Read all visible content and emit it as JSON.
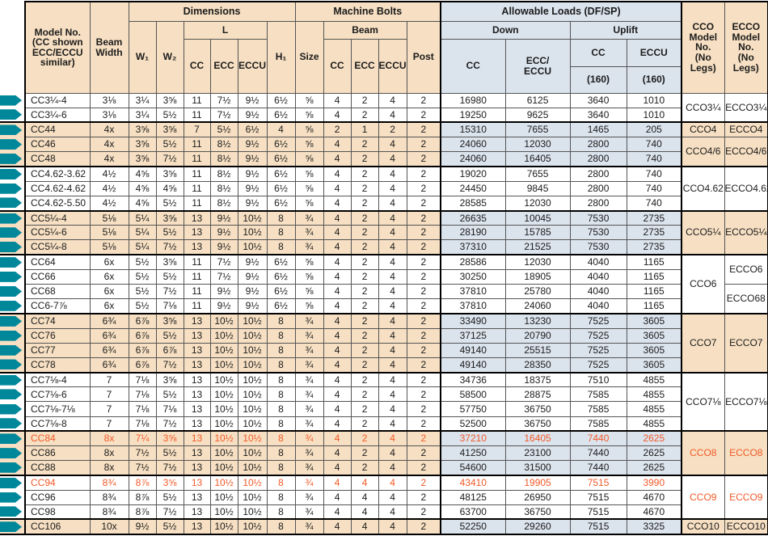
{
  "colors": {
    "tan": "#f6dfc2",
    "blue": "#dbe3ed",
    "teal": "#00879a",
    "orange": "#f15a29"
  },
  "header": {
    "model": "Model No.\n(CC shown\nECC/ECCU\nsimilar)",
    "beam_width": "Beam\nWidth",
    "dimensions": "Dimensions",
    "machine_bolts": "Machine Bolts",
    "allowable_loads": "Allowable Loads (DF/SP)",
    "w1": "W₁",
    "w2": "W₂",
    "l": "L",
    "h1": "H₁",
    "size": "Size",
    "beam": "Beam",
    "post": "Post",
    "down": "Down",
    "uplift": "Uplift",
    "cc": "CC",
    "ecc": "ECC",
    "eccu": "ECCU",
    "ecc_eccu": "ECC/\nECCU",
    "rating160": "(160)",
    "cco": "CCO\nModel No.\n(No Legs)",
    "ecco": "ECCO\nModel No.\n(No Legs)"
  },
  "column_keys": [
    "model",
    "beam_width",
    "w1",
    "w2",
    "l_cc",
    "l_ecc",
    "l_eccu",
    "h1",
    "size",
    "bolt_cc",
    "bolt_ecc",
    "bolt_eccu",
    "post",
    "down_cc",
    "down_ecc_eccu",
    "uplift_cc_160",
    "uplift_eccu_160"
  ],
  "groups": [
    {
      "shade": "white",
      "cco": [
        {
          "label": "CCO3¼",
          "span": 2
        }
      ],
      "ecco": [
        {
          "label": "ECCO3¼",
          "span": 2
        }
      ],
      "rows": [
        {
          "cells": [
            "CC3¼-4",
            "3⅛",
            "3¼",
            "3⅝",
            "11",
            "7½",
            "9½",
            "6½",
            "⅝",
            "4",
            "2",
            "4",
            "2",
            "16980",
            "6125",
            "3640",
            "1010"
          ]
        },
        {
          "cells": [
            "CC3¼-6",
            "3⅛",
            "3¼",
            "5½",
            "11",
            "7½",
            "9½",
            "6½",
            "⅝",
            "4",
            "2",
            "4",
            "2",
            "19250",
            "9625",
            "3640",
            "1010"
          ]
        }
      ]
    },
    {
      "shade": "tan",
      "cco": [
        {
          "label": "CCO4",
          "span": 1
        },
        {
          "label": "CCO4/6",
          "span": 2
        }
      ],
      "ecco": [
        {
          "label": "ECCO4",
          "span": 1
        },
        {
          "label": "ECCO4/6",
          "span": 2
        }
      ],
      "rows": [
        {
          "cells": [
            "CC44",
            "4x",
            "3⅝",
            "3⅝",
            "7",
            "5½",
            "6½",
            "4",
            "⅝",
            "2",
            "1",
            "2",
            "2",
            "15310",
            "7655",
            "1465",
            "205"
          ]
        },
        {
          "cells": [
            "CC46",
            "4x",
            "3⅝",
            "5½",
            "11",
            "8½",
            "9½",
            "6½",
            "⅝",
            "4",
            "2",
            "4",
            "2",
            "24060",
            "12030",
            "2800",
            "740"
          ]
        },
        {
          "cells": [
            "CC48",
            "4x",
            "3⅝",
            "7½",
            "11",
            "8½",
            "9½",
            "6½",
            "⅝",
            "4",
            "2",
            "4",
            "2",
            "24060",
            "16405",
            "2800",
            "740"
          ]
        }
      ]
    },
    {
      "shade": "white",
      "cco": [
        {
          "label": "CCO4.62",
          "span": 3
        }
      ],
      "ecco": [
        {
          "label": "ECCO4.62",
          "span": 3
        }
      ],
      "rows": [
        {
          "cells": [
            "CC4.62-3.62",
            "4½",
            "4⅝",
            "3⅝",
            "11",
            "8½",
            "9½",
            "6½",
            "⅝",
            "4",
            "2",
            "4",
            "2",
            "19020",
            "7655",
            "2800",
            "740"
          ]
        },
        {
          "cells": [
            "CC4.62-4.62",
            "4½",
            "4⅝",
            "4⅝",
            "11",
            "8½",
            "9½",
            "6½",
            "⅝",
            "4",
            "2",
            "4",
            "2",
            "24450",
            "9845",
            "2800",
            "740"
          ]
        },
        {
          "cells": [
            "CC4.62-5.50",
            "4½",
            "4⅝",
            "5½",
            "11",
            "8½",
            "9½",
            "6½",
            "⅝",
            "4",
            "2",
            "4",
            "2",
            "28585",
            "12030",
            "2800",
            "740"
          ]
        }
      ]
    },
    {
      "shade": "tan",
      "cco": [
        {
          "label": "CCO5¼",
          "span": 3
        }
      ],
      "ecco": [
        {
          "label": "ECCO5¼",
          "span": 3
        }
      ],
      "rows": [
        {
          "cells": [
            "CC5¼-4",
            "5⅛",
            "5¼",
            "3⅝",
            "13",
            "9½",
            "10½",
            "8",
            "¾",
            "4",
            "2",
            "4",
            "2",
            "26635",
            "10045",
            "7530",
            "2735"
          ]
        },
        {
          "cells": [
            "CC5¼-6",
            "5⅛",
            "5¼",
            "5½",
            "13",
            "9½",
            "10½",
            "8",
            "¾",
            "4",
            "2",
            "4",
            "2",
            "28190",
            "15785",
            "7530",
            "2735"
          ]
        },
        {
          "cells": [
            "CC5¼-8",
            "5⅛",
            "5¼",
            "7½",
            "13",
            "9½",
            "10½",
            "8",
            "¾",
            "4",
            "2",
            "4",
            "2",
            "37310",
            "21525",
            "7530",
            "2735"
          ]
        }
      ]
    },
    {
      "shade": "white",
      "cco": [
        {
          "label": "CCO6",
          "span": 4
        }
      ],
      "ecco": [
        {
          "label": "ECCO6",
          "span": 2
        },
        {
          "label": "ECCO68",
          "span": 2
        }
      ],
      "rows": [
        {
          "cells": [
            "CC64",
            "6x",
            "5½",
            "3⅝",
            "11",
            "7½",
            "9½",
            "6½",
            "⅝",
            "4",
            "2",
            "4",
            "2",
            "28586",
            "12030",
            "4040",
            "1165"
          ]
        },
        {
          "cells": [
            "CC66",
            "6x",
            "5½",
            "5½",
            "11",
            "7½",
            "9½",
            "6½",
            "⅝",
            "4",
            "2",
            "4",
            "2",
            "30250",
            "18905",
            "4040",
            "1165"
          ]
        },
        {
          "cells": [
            "CC68",
            "6x",
            "5½",
            "7½",
            "11",
            "9½",
            "9½",
            "6½",
            "⅝",
            "4",
            "2",
            "4",
            "2",
            "37810",
            "25780",
            "4040",
            "1165"
          ]
        },
        {
          "cells": [
            "CC6-7⅞",
            "6x",
            "5½",
            "7⅛",
            "11",
            "9½",
            "9½",
            "6½",
            "⅝",
            "4",
            "2",
            "4",
            "2",
            "37810",
            "24060",
            "4040",
            "1165"
          ]
        }
      ]
    },
    {
      "shade": "tan",
      "cco": [
        {
          "label": "CCO7",
          "span": 4
        }
      ],
      "ecco": [
        {
          "label": "ECCO7",
          "span": 4
        }
      ],
      "rows": [
        {
          "cells": [
            "CC74",
            "6¾",
            "6⅞",
            "3⅝",
            "13",
            "10½",
            "10½",
            "8",
            "¾",
            "4",
            "2",
            "4",
            "2",
            "33490",
            "13230",
            "7525",
            "3605"
          ]
        },
        {
          "cells": [
            "CC76",
            "6¾",
            "6⅞",
            "5½",
            "13",
            "10½",
            "10½",
            "8",
            "¾",
            "4",
            "2",
            "4",
            "2",
            "37125",
            "20790",
            "7525",
            "3605"
          ]
        },
        {
          "cells": [
            "CC77",
            "6¾",
            "6⅞",
            "6⅞",
            "13",
            "10½",
            "10½",
            "8",
            "¾",
            "4",
            "2",
            "4",
            "2",
            "49140",
            "25515",
            "7525",
            "3605"
          ]
        },
        {
          "cells": [
            "CC78",
            "6¾",
            "6⅞",
            "7½",
            "13",
            "10½",
            "10½",
            "8",
            "¾",
            "4",
            "2",
            "4",
            "2",
            "49140",
            "28350",
            "7525",
            "3605"
          ]
        }
      ]
    },
    {
      "shade": "white",
      "cco": [
        {
          "label": "CCO7⅛",
          "span": 4
        }
      ],
      "ecco": [
        {
          "label": "ECCO7⅛",
          "span": 4
        }
      ],
      "rows": [
        {
          "cells": [
            "CC7⅛-4",
            "7",
            "7⅛",
            "3⅝",
            "13",
            "10½",
            "10½",
            "8",
            "¾",
            "4",
            "2",
            "4",
            "2",
            "34736",
            "18375",
            "7510",
            "4855"
          ]
        },
        {
          "cells": [
            "CC7⅛-6",
            "7",
            "7⅛",
            "5½",
            "13",
            "10½",
            "10½",
            "8",
            "¾",
            "4",
            "2",
            "4",
            "2",
            "58500",
            "28875",
            "7585",
            "4855"
          ]
        },
        {
          "cells": [
            "CC7⅛-7⅛",
            "7",
            "7⅛",
            "7⅛",
            "13",
            "10½",
            "10½",
            "8",
            "¾",
            "4",
            "2",
            "4",
            "2",
            "57750",
            "36750",
            "7585",
            "4855"
          ]
        },
        {
          "cells": [
            "CC7⅛-8",
            "7",
            "7⅛",
            "7½",
            "13",
            "10½",
            "10½",
            "8",
            "¾",
            "4",
            "2",
            "4",
            "2",
            "52500",
            "36750",
            "7585",
            "4855"
          ]
        }
      ]
    },
    {
      "shade": "tan",
      "cco": [
        {
          "label": "CCO8",
          "span": 3
        }
      ],
      "ecco": [
        {
          "label": "ECCO8",
          "span": 3
        }
      ],
      "rows": [
        {
          "highlight": true,
          "cells": [
            "CC84",
            "8x",
            "7¼",
            "3⅝",
            "13",
            "10½",
            "10½",
            "8",
            "¾",
            "4",
            "2",
            "4",
            "2",
            "37210",
            "16405",
            "7440",
            "2625"
          ]
        },
        {
          "cells": [
            "CC86",
            "8x",
            "7½",
            "5½",
            "13",
            "10½",
            "10½",
            "8",
            "¾",
            "4",
            "2",
            "4",
            "2",
            "41250",
            "23100",
            "7440",
            "2625"
          ]
        },
        {
          "cells": [
            "CC88",
            "8x",
            "7½",
            "7½",
            "13",
            "10½",
            "10½",
            "8",
            "¾",
            "4",
            "2",
            "4",
            "2",
            "54600",
            "31500",
            "7440",
            "2625"
          ]
        }
      ]
    },
    {
      "shade": "white",
      "cco": [
        {
          "label": "CCO9",
          "span": 3
        }
      ],
      "ecco": [
        {
          "label": "ECCO9",
          "span": 3
        }
      ],
      "rows": [
        {
          "highlight": true,
          "cells": [
            "CC94",
            "8¾",
            "8⅞",
            "3⅝",
            "13",
            "10½",
            "10½",
            "8",
            "¾",
            "4",
            "4",
            "4",
            "2",
            "43410",
            "19905",
            "7515",
            "3990"
          ]
        },
        {
          "cells": [
            "CC96",
            "8¾",
            "8⅞",
            "5½",
            "13",
            "10½",
            "10½",
            "8",
            "¾",
            "4",
            "4",
            "4",
            "2",
            "48125",
            "26950",
            "7515",
            "4670"
          ]
        },
        {
          "cells": [
            "CC98",
            "8¾",
            "8⅞",
            "7½",
            "13",
            "10½",
            "10½",
            "8",
            "¾",
            "4",
            "4",
            "4",
            "2",
            "63700",
            "36750",
            "7515",
            "4670"
          ]
        }
      ]
    },
    {
      "shade": "tan",
      "cco": [
        {
          "label": "CCO10",
          "span": 1
        }
      ],
      "ecco": [
        {
          "label": "ECCO10",
          "span": 1
        }
      ],
      "rows": [
        {
          "cells": [
            "CC106",
            "10x",
            "9½",
            "5½",
            "13",
            "10½",
            "10½",
            "8",
            "¾",
            "4",
            "4",
            "4",
            "2",
            "52250",
            "29260",
            "7515",
            "3325"
          ]
        }
      ]
    }
  ]
}
